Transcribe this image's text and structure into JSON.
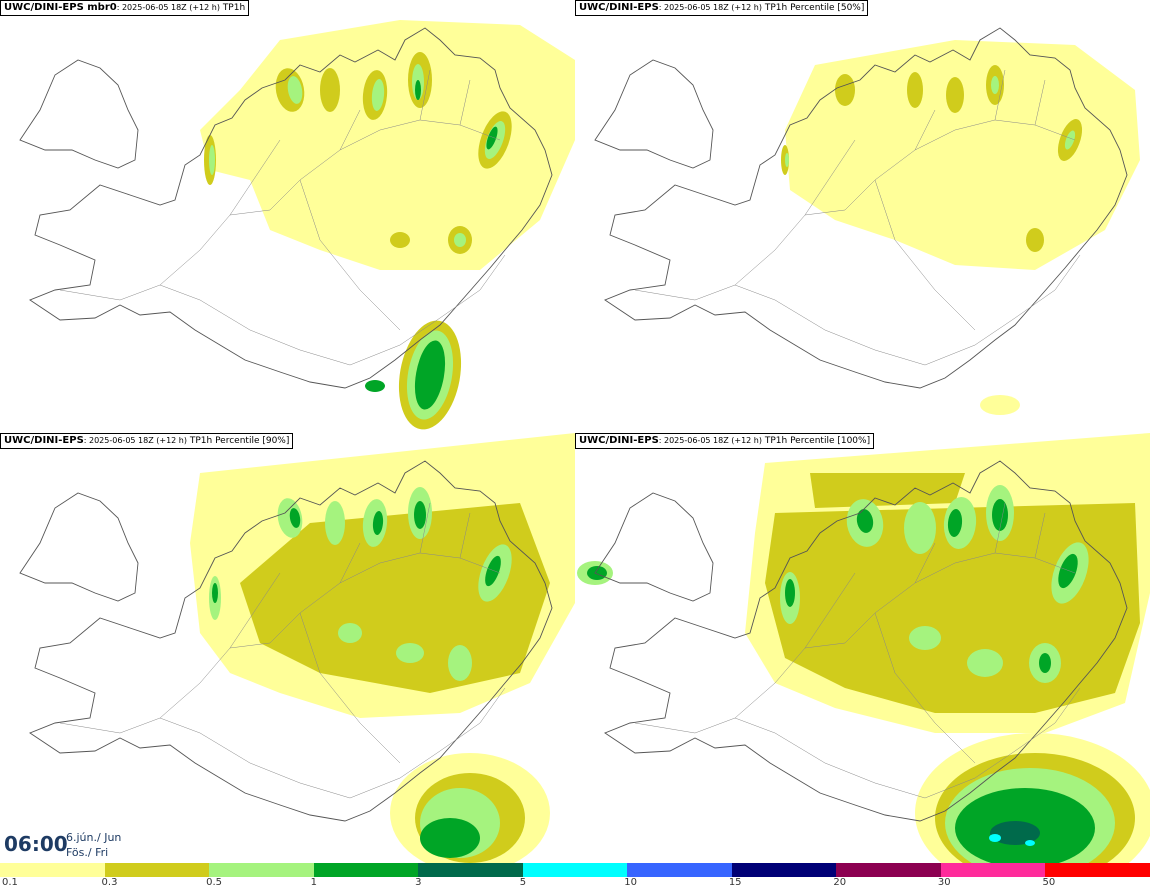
{
  "panels": [
    {
      "model": "UWC/DINI-EPS mbr0",
      "meta": ": 2025-06-05 18Z (+12 h)",
      "var": "TP1h"
    },
    {
      "model": "UWC/DINI-EPS",
      "meta": ": 2025-06-05 18Z (+12 h)",
      "var": "TP1h Percentile [50%]"
    },
    {
      "model": "UWC/DINI-EPS",
      "meta": ": 2025-06-05 18Z (+12 h)",
      "var": "TP1h Percentile [90%]"
    },
    {
      "model": "UWC/DINI-EPS",
      "meta": ": 2025-06-05 18Z (+12 h)",
      "var": "TP1h Percentile [100%]"
    }
  ],
  "clock": {
    "time": "06:00",
    "date_line1": "6.jún./ Jun",
    "date_line2": "Fös./ Fri"
  },
  "legend": {
    "ticks": [
      "0.1",
      "0.3",
      "0.5",
      "1",
      "3",
      "5",
      "10",
      "15",
      "20",
      "30",
      "50"
    ],
    "colors": [
      "#ffff99",
      "#d0cc1c",
      "#a5f37e",
      "#00a526",
      "#006a4b",
      "#00fefe",
      "#3765ff",
      "#000076",
      "#8c0051",
      "#ff2b9b",
      "#ff0000"
    ]
  },
  "colors": {
    "light": "#ffff99",
    "olive": "#d0cc1c",
    "lightgreen": "#a5f37e",
    "green": "#00a526",
    "darkgreen": "#006a4b",
    "cyan": "#00fefe",
    "coast": "#555555"
  }
}
